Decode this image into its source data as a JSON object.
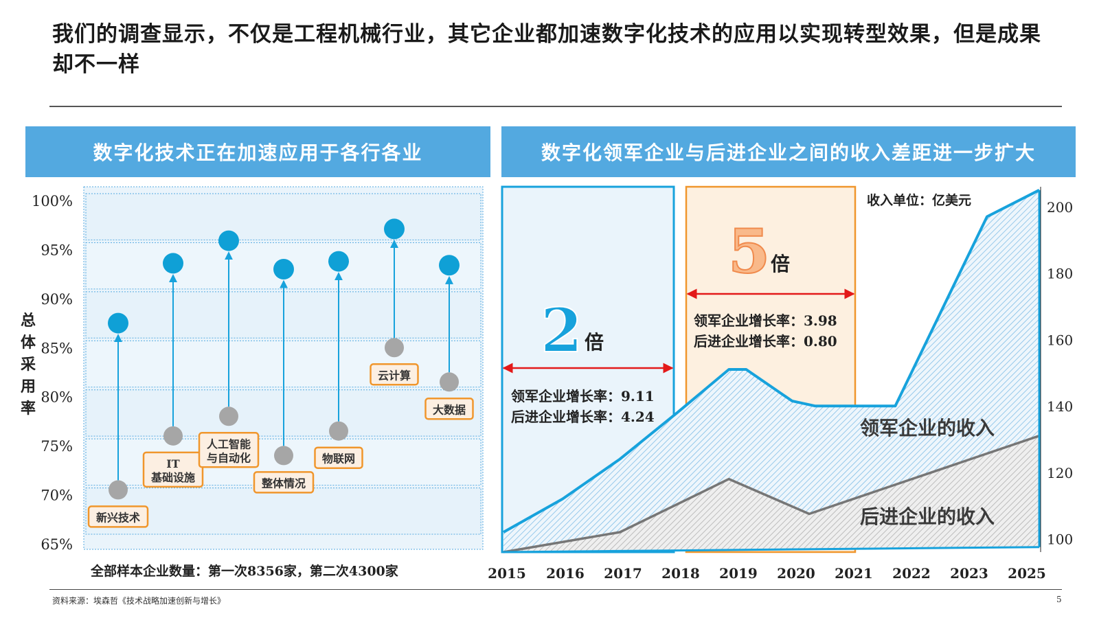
{
  "title": "我们的调查显示，不仅是工程机械行业，其它企业都加速数字化技术的应用以实现转型效果，但是成果却不一样",
  "left_banner": "数字化技术正在加速应用于各行各业",
  "right_banner": "数字化领军企业与后进企业之间的收入差距进一步扩大",
  "source": "资料来源：埃森哲《技术战略加速创新与增长》",
  "page_number": "5",
  "colors": {
    "accent_blue": "#53a9e0",
    "dot_blue": "#0fa0d6",
    "dot_grey": "#a6a6a6",
    "label_orange": "#f0962c",
    "leader_blue": "#17a2dc",
    "laggard_grey": "#767676",
    "arrow_red": "#e31919"
  },
  "chart_data": [
    {
      "type": "scatter",
      "ylabel": "总体采用率",
      "ylim": [
        65,
        100
      ],
      "yticks": [
        65,
        70,
        75,
        80,
        85,
        90,
        95,
        100
      ],
      "ytick_labels": [
        "65%",
        "70%",
        "75%",
        "80%",
        "85%",
        "90%",
        "95%",
        "100%"
      ],
      "categories": [
        "新兴技术",
        "IT\n基础设施",
        "人工智能\n与自动化",
        "整体情况",
        "物联网",
        "云计算",
        "大数据"
      ],
      "series": [
        {
          "values": [
            70.5,
            76.0,
            78.0,
            74.0,
            76.5,
            85.0,
            81.5
          ]
        },
        {
          "values": [
            87.5,
            93.6,
            95.9,
            93.0,
            93.8,
            97.1,
            93.4
          ]
        }
      ],
      "note": "全部样本企业数量：第一次8356家，第二次4300家"
    },
    {
      "type": "area",
      "x": [
        2015,
        2016,
        2017,
        2018,
        2019,
        2020,
        2021,
        2022,
        2023,
        2025
      ],
      "x_positions": [
        2015,
        2016,
        2017,
        2018,
        2019,
        2020,
        2021,
        2022,
        2023,
        2024.3
      ],
      "xtick_labels": [
        "2015",
        "2016",
        "2017",
        "2018",
        "2019",
        "2020",
        "2021",
        "2022",
        "2023",
        "2025"
      ],
      "ylim": [
        96,
        206
      ],
      "yticks": [
        100,
        120,
        140,
        160,
        180,
        200
      ],
      "unit_label": "收入单位：亿美元",
      "series": [
        {
          "name": "领军企业的收入",
          "points": [
            [
              2014.97,
              102
            ],
            [
              2016,
              112
            ],
            [
              2017,
              124
            ],
            [
              2018,
              138
            ],
            [
              2018.9,
              151
            ],
            [
              2019.2,
              151
            ],
            [
              2020,
              141.5
            ],
            [
              2020.4,
              140
            ],
            [
              2021.4,
              140
            ],
            [
              2021.8,
              140
            ],
            [
              2023.4,
              197
            ],
            [
              2024.31,
              205
            ]
          ]
        },
        {
          "name": "后进企业的收入",
          "points": [
            [
              2014.97,
              96
            ],
            [
              2017,
              102
            ],
            [
              2018.9,
              118
            ],
            [
              2020.3,
              107.5
            ],
            [
              2024.31,
              131
            ]
          ]
        },
        {
          "points": [
            [
              2014.97,
              96
            ],
            [
              2024.31,
              97.5
            ]
          ]
        }
      ],
      "annotations": [
        {
          "multiple": "2",
          "unit": "倍",
          "leader_growth": "领军企业增长率：9.11",
          "laggard_growth": "后进企业增长率：4.24"
        },
        {
          "multiple": "5",
          "unit": "倍",
          "leader_growth": "领军企业增长率：3.98",
          "laggard_growth": "后进企业增长率：0.80"
        }
      ]
    }
  ]
}
